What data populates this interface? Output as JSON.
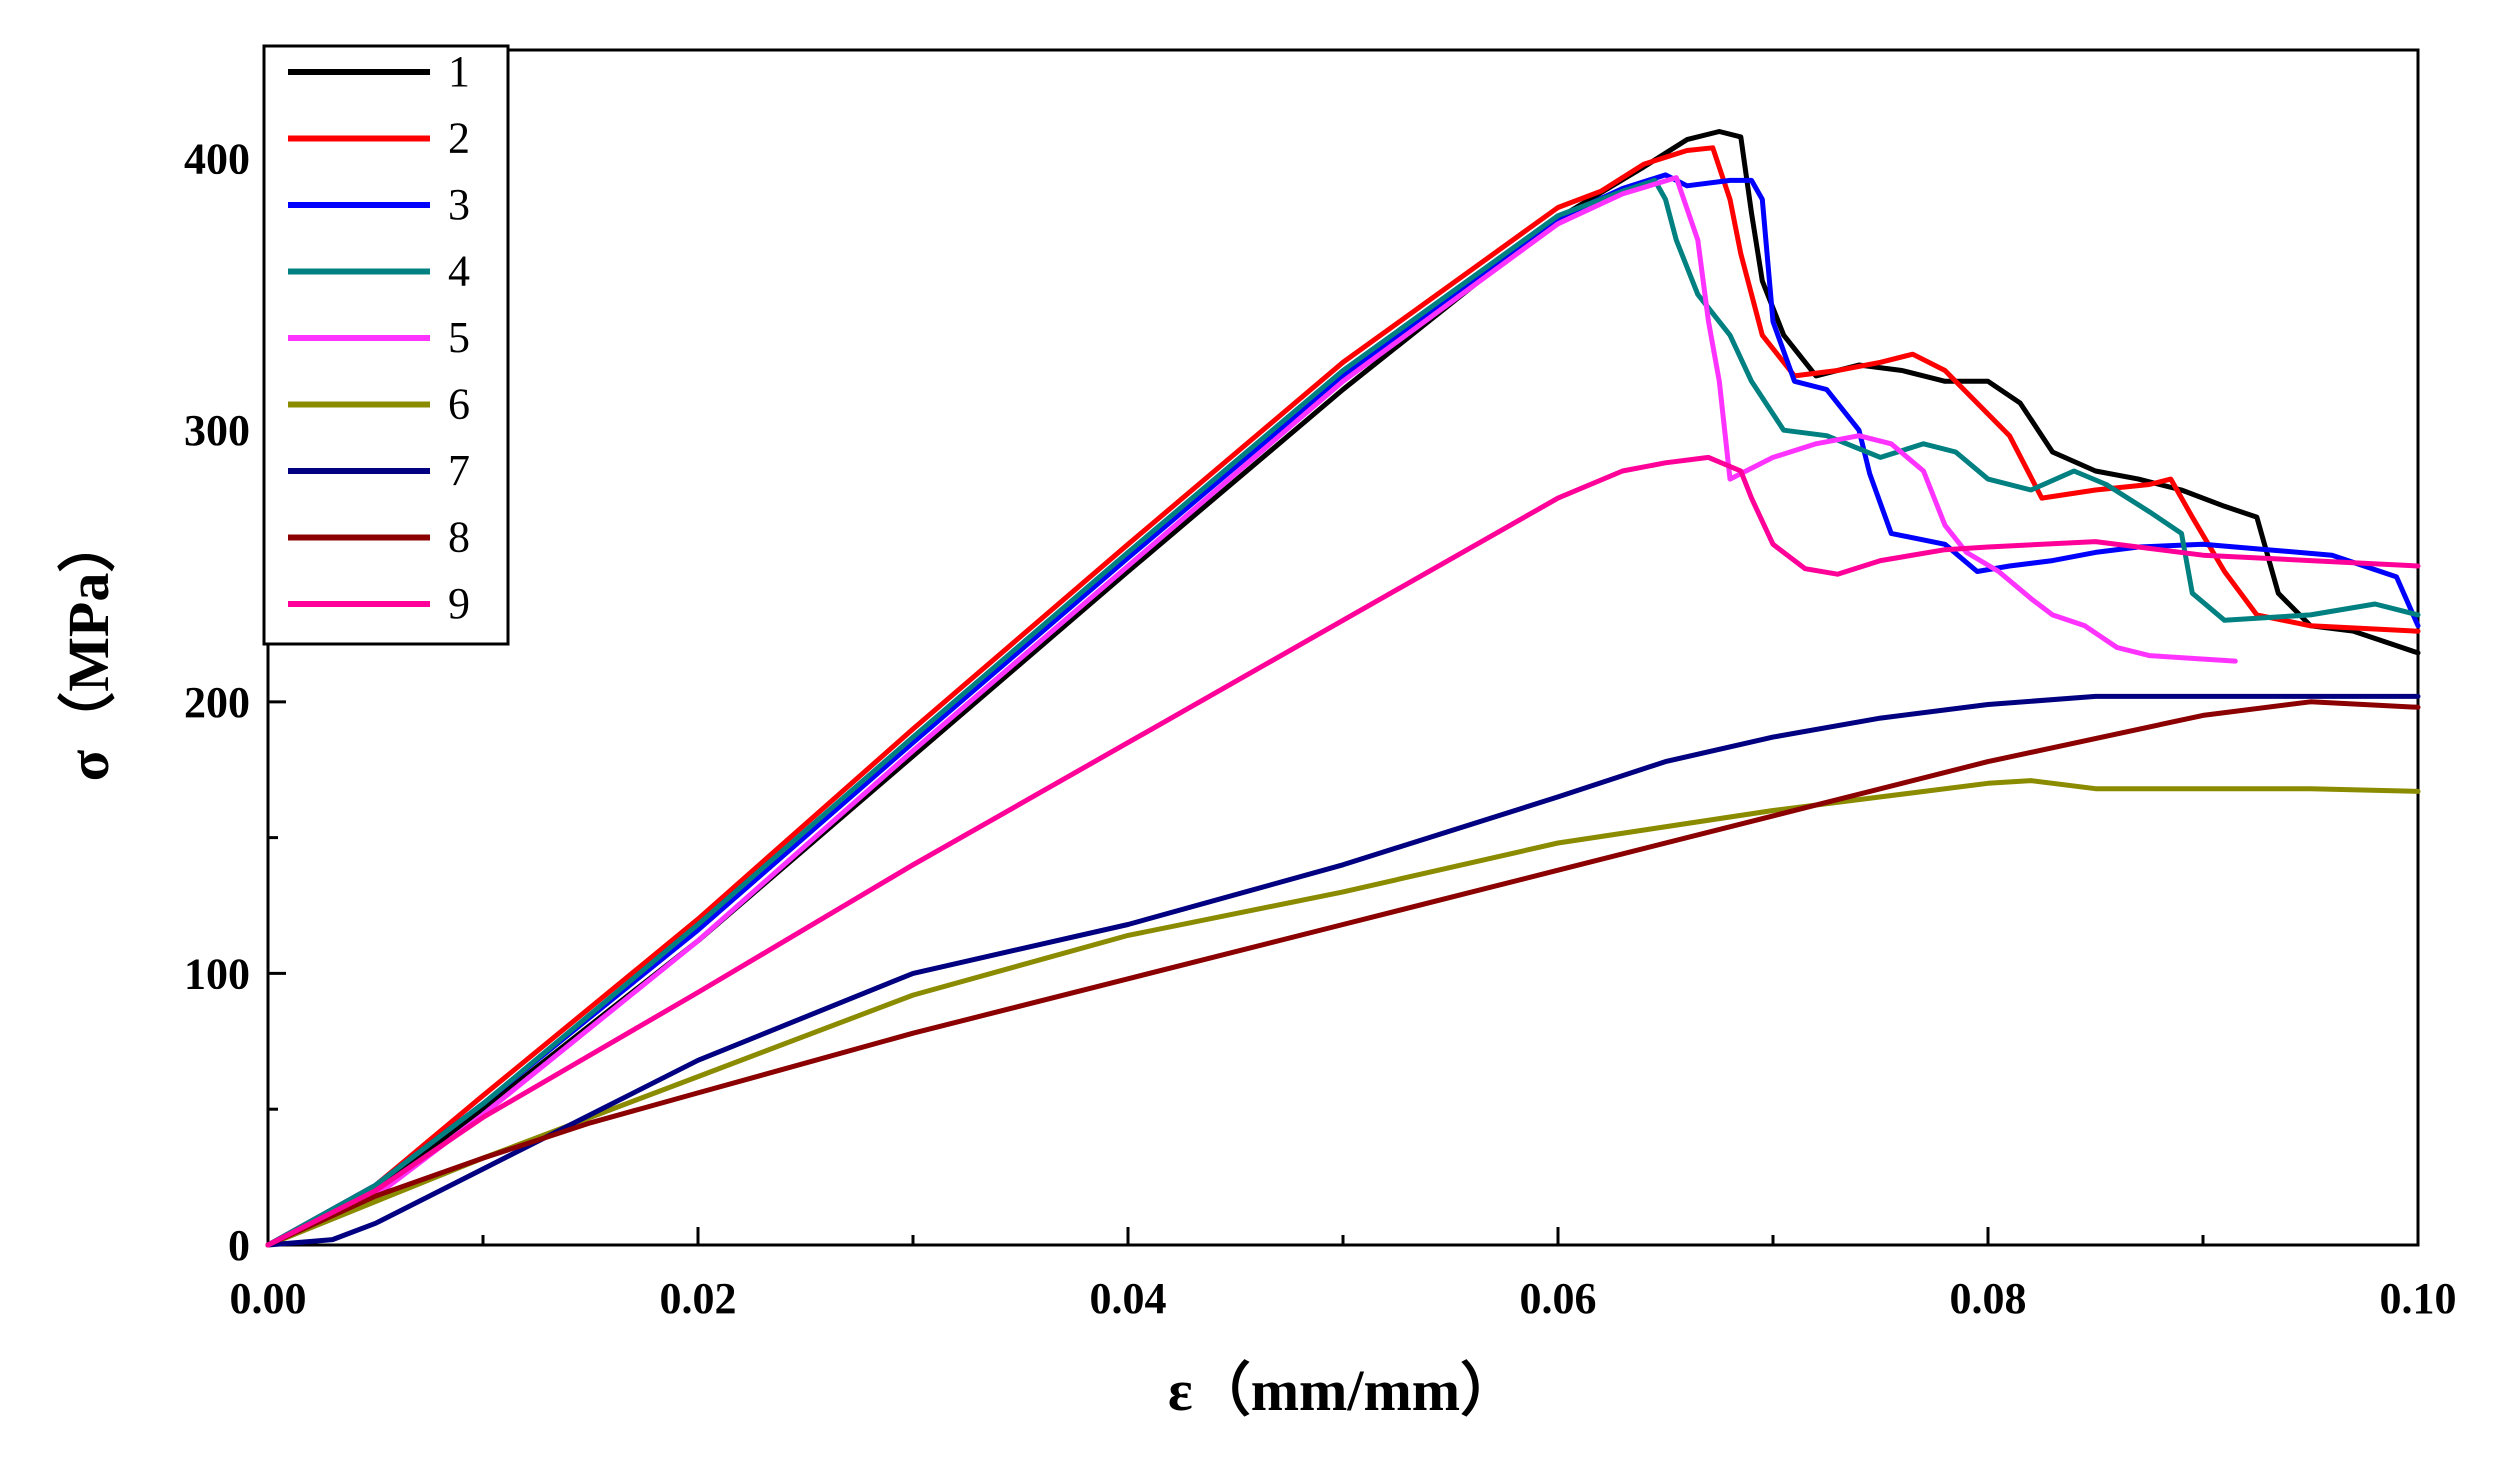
{
  "chart_data": {
    "type": "line",
    "title": "",
    "xlabel": "ε（mm/mm）",
    "ylabel": "σ（MPa）",
    "xlim": [
      0,
      0.1
    ],
    "ylim": [
      0,
      440
    ],
    "xticks": [
      0.0,
      0.02,
      0.04,
      0.06,
      0.08,
      0.1
    ],
    "xtick_labels": [
      "0.00",
      "0.02",
      "0.04",
      "0.06",
      "0.08",
      "0.10"
    ],
    "yticks": [
      0,
      100,
      200,
      300,
      400
    ],
    "ytick_labels": [
      "0",
      "100",
      "200",
      "300",
      "400"
    ],
    "grid": false,
    "legend_position": "top-left",
    "series": [
      {
        "name": "1",
        "color": "#000000",
        "x": [
          0,
          0.005,
          0.01,
          0.02,
          0.03,
          0.04,
          0.05,
          0.06,
          0.064,
          0.066,
          0.0675,
          0.0685,
          0.069,
          0.0695,
          0.0705,
          0.072,
          0.074,
          0.076,
          0.078,
          0.08,
          0.0815,
          0.083,
          0.085,
          0.087,
          0.089,
          0.091,
          0.0925,
          0.0935,
          0.095,
          0.097,
          0.1
        ],
        "y": [
          0,
          20,
          50,
          112,
          180,
          248,
          315,
          378,
          397,
          407,
          410,
          408,
          380,
          355,
          335,
          320,
          324,
          322,
          318,
          318,
          310,
          292,
          285,
          282,
          278,
          272,
          268,
          240,
          228,
          226,
          218
        ]
      },
      {
        "name": "2",
        "color": "#ff0000",
        "x": [
          0,
          0.005,
          0.01,
          0.02,
          0.03,
          0.04,
          0.05,
          0.06,
          0.062,
          0.064,
          0.066,
          0.0672,
          0.068,
          0.0685,
          0.0695,
          0.071,
          0.073,
          0.075,
          0.0765,
          0.078,
          0.0795,
          0.081,
          0.0825,
          0.085,
          0.0875,
          0.0885,
          0.0895,
          0.091,
          0.0925,
          0.095,
          0.1
        ],
        "y": [
          0,
          22,
          55,
          120,
          190,
          258,
          325,
          382,
          388,
          398,
          403,
          404,
          385,
          365,
          335,
          320,
          322,
          325,
          328,
          322,
          310,
          298,
          275,
          278,
          280,
          282,
          268,
          248,
          232,
          228,
          226
        ]
      },
      {
        "name": "3",
        "color": "#0000ff",
        "x": [
          0,
          0.005,
          0.01,
          0.02,
          0.03,
          0.04,
          0.05,
          0.06,
          0.063,
          0.065,
          0.066,
          0.068,
          0.069,
          0.0695,
          0.07,
          0.071,
          0.0725,
          0.074,
          0.0745,
          0.0755,
          0.078,
          0.0795,
          0.081,
          0.083,
          0.085,
          0.087,
          0.09,
          0.093,
          0.096,
          0.099,
          0.1
        ],
        "y": [
          0,
          22,
          52,
          116,
          185,
          253,
          320,
          378,
          389,
          394,
          390,
          392,
          392,
          385,
          340,
          318,
          315,
          300,
          284,
          262,
          258,
          248,
          250,
          252,
          255,
          257,
          258,
          256,
          254,
          246,
          228
        ]
      },
      {
        "name": "4",
        "color": "#008080",
        "x": [
          0,
          0.005,
          0.01,
          0.02,
          0.03,
          0.04,
          0.05,
          0.06,
          0.063,
          0.0645,
          0.065,
          0.0655,
          0.0665,
          0.068,
          0.069,
          0.0705,
          0.0725,
          0.075,
          0.077,
          0.0785,
          0.08,
          0.082,
          0.084,
          0.0855,
          0.0875,
          0.089,
          0.0895,
          0.091,
          0.095,
          0.098,
          0.1
        ],
        "y": [
          0,
          22,
          52,
          118,
          187,
          255,
          322,
          379,
          388,
          392,
          385,
          370,
          350,
          335,
          318,
          300,
          298,
          290,
          295,
          292,
          282,
          278,
          285,
          280,
          270,
          262,
          240,
          230,
          232,
          236,
          232
        ]
      },
      {
        "name": "5",
        "color": "#ff33ff",
        "x": [
          0,
          0.005,
          0.01,
          0.02,
          0.03,
          0.04,
          0.05,
          0.06,
          0.063,
          0.0655,
          0.0665,
          0.067,
          0.0675,
          0.068,
          0.07,
          0.072,
          0.074,
          0.0755,
          0.077,
          0.078,
          0.079,
          0.0805,
          0.082,
          0.083,
          0.0845,
          0.086,
          0.0875,
          0.0895,
          0.0915
        ],
        "y": [
          0,
          18,
          48,
          112,
          182,
          250,
          318,
          376,
          387,
          393,
          370,
          340,
          318,
          282,
          290,
          295,
          298,
          295,
          285,
          265,
          255,
          248,
          238,
          232,
          228,
          220,
          217,
          216,
          215
        ]
      },
      {
        "name": "6",
        "color": "#8b8b00",
        "x": [
          0,
          0.005,
          0.01,
          0.02,
          0.03,
          0.04,
          0.05,
          0.06,
          0.07,
          0.075,
          0.08,
          0.082,
          0.085,
          0.09,
          0.095,
          0.1
        ],
        "y": [
          0,
          16,
          32,
          62,
          92,
          114,
          130,
          148,
          160,
          165,
          170,
          171,
          168,
          168,
          168,
          167
        ]
      },
      {
        "name": "7",
        "color": "#000080",
        "x": [
          0,
          0.003,
          0.005,
          0.01,
          0.015,
          0.02,
          0.03,
          0.04,
          0.05,
          0.06,
          0.065,
          0.07,
          0.075,
          0.08,
          0.085,
          0.09,
          0.095,
          0.1
        ],
        "y": [
          0,
          2,
          8,
          28,
          48,
          68,
          100,
          118,
          140,
          165,
          178,
          187,
          194,
          199,
          202,
          202,
          202,
          202
        ]
      },
      {
        "name": "8",
        "color": "#8b0000",
        "x": [
          0,
          0.005,
          0.01,
          0.015,
          0.02,
          0.03,
          0.04,
          0.05,
          0.06,
          0.07,
          0.08,
          0.09,
          0.095,
          0.1
        ],
        "y": [
          0,
          18,
          32,
          45,
          56,
          78,
          98,
          118,
          138,
          158,
          178,
          195,
          200,
          198
        ]
      },
      {
        "name": "9",
        "color": "#ff0099",
        "x": [
          0,
          0.005,
          0.01,
          0.015,
          0.02,
          0.03,
          0.04,
          0.05,
          0.06,
          0.063,
          0.065,
          0.067,
          0.0685,
          0.069,
          0.07,
          0.0715,
          0.073,
          0.075,
          0.078,
          0.08,
          0.085,
          0.09,
          0.095,
          0.1
        ],
        "y": [
          0,
          20,
          47,
          70,
          93,
          140,
          185,
          230,
          275,
          285,
          288,
          290,
          285,
          275,
          258,
          249,
          247,
          252,
          256,
          257,
          259,
          254,
          252,
          250
        ]
      }
    ]
  }
}
